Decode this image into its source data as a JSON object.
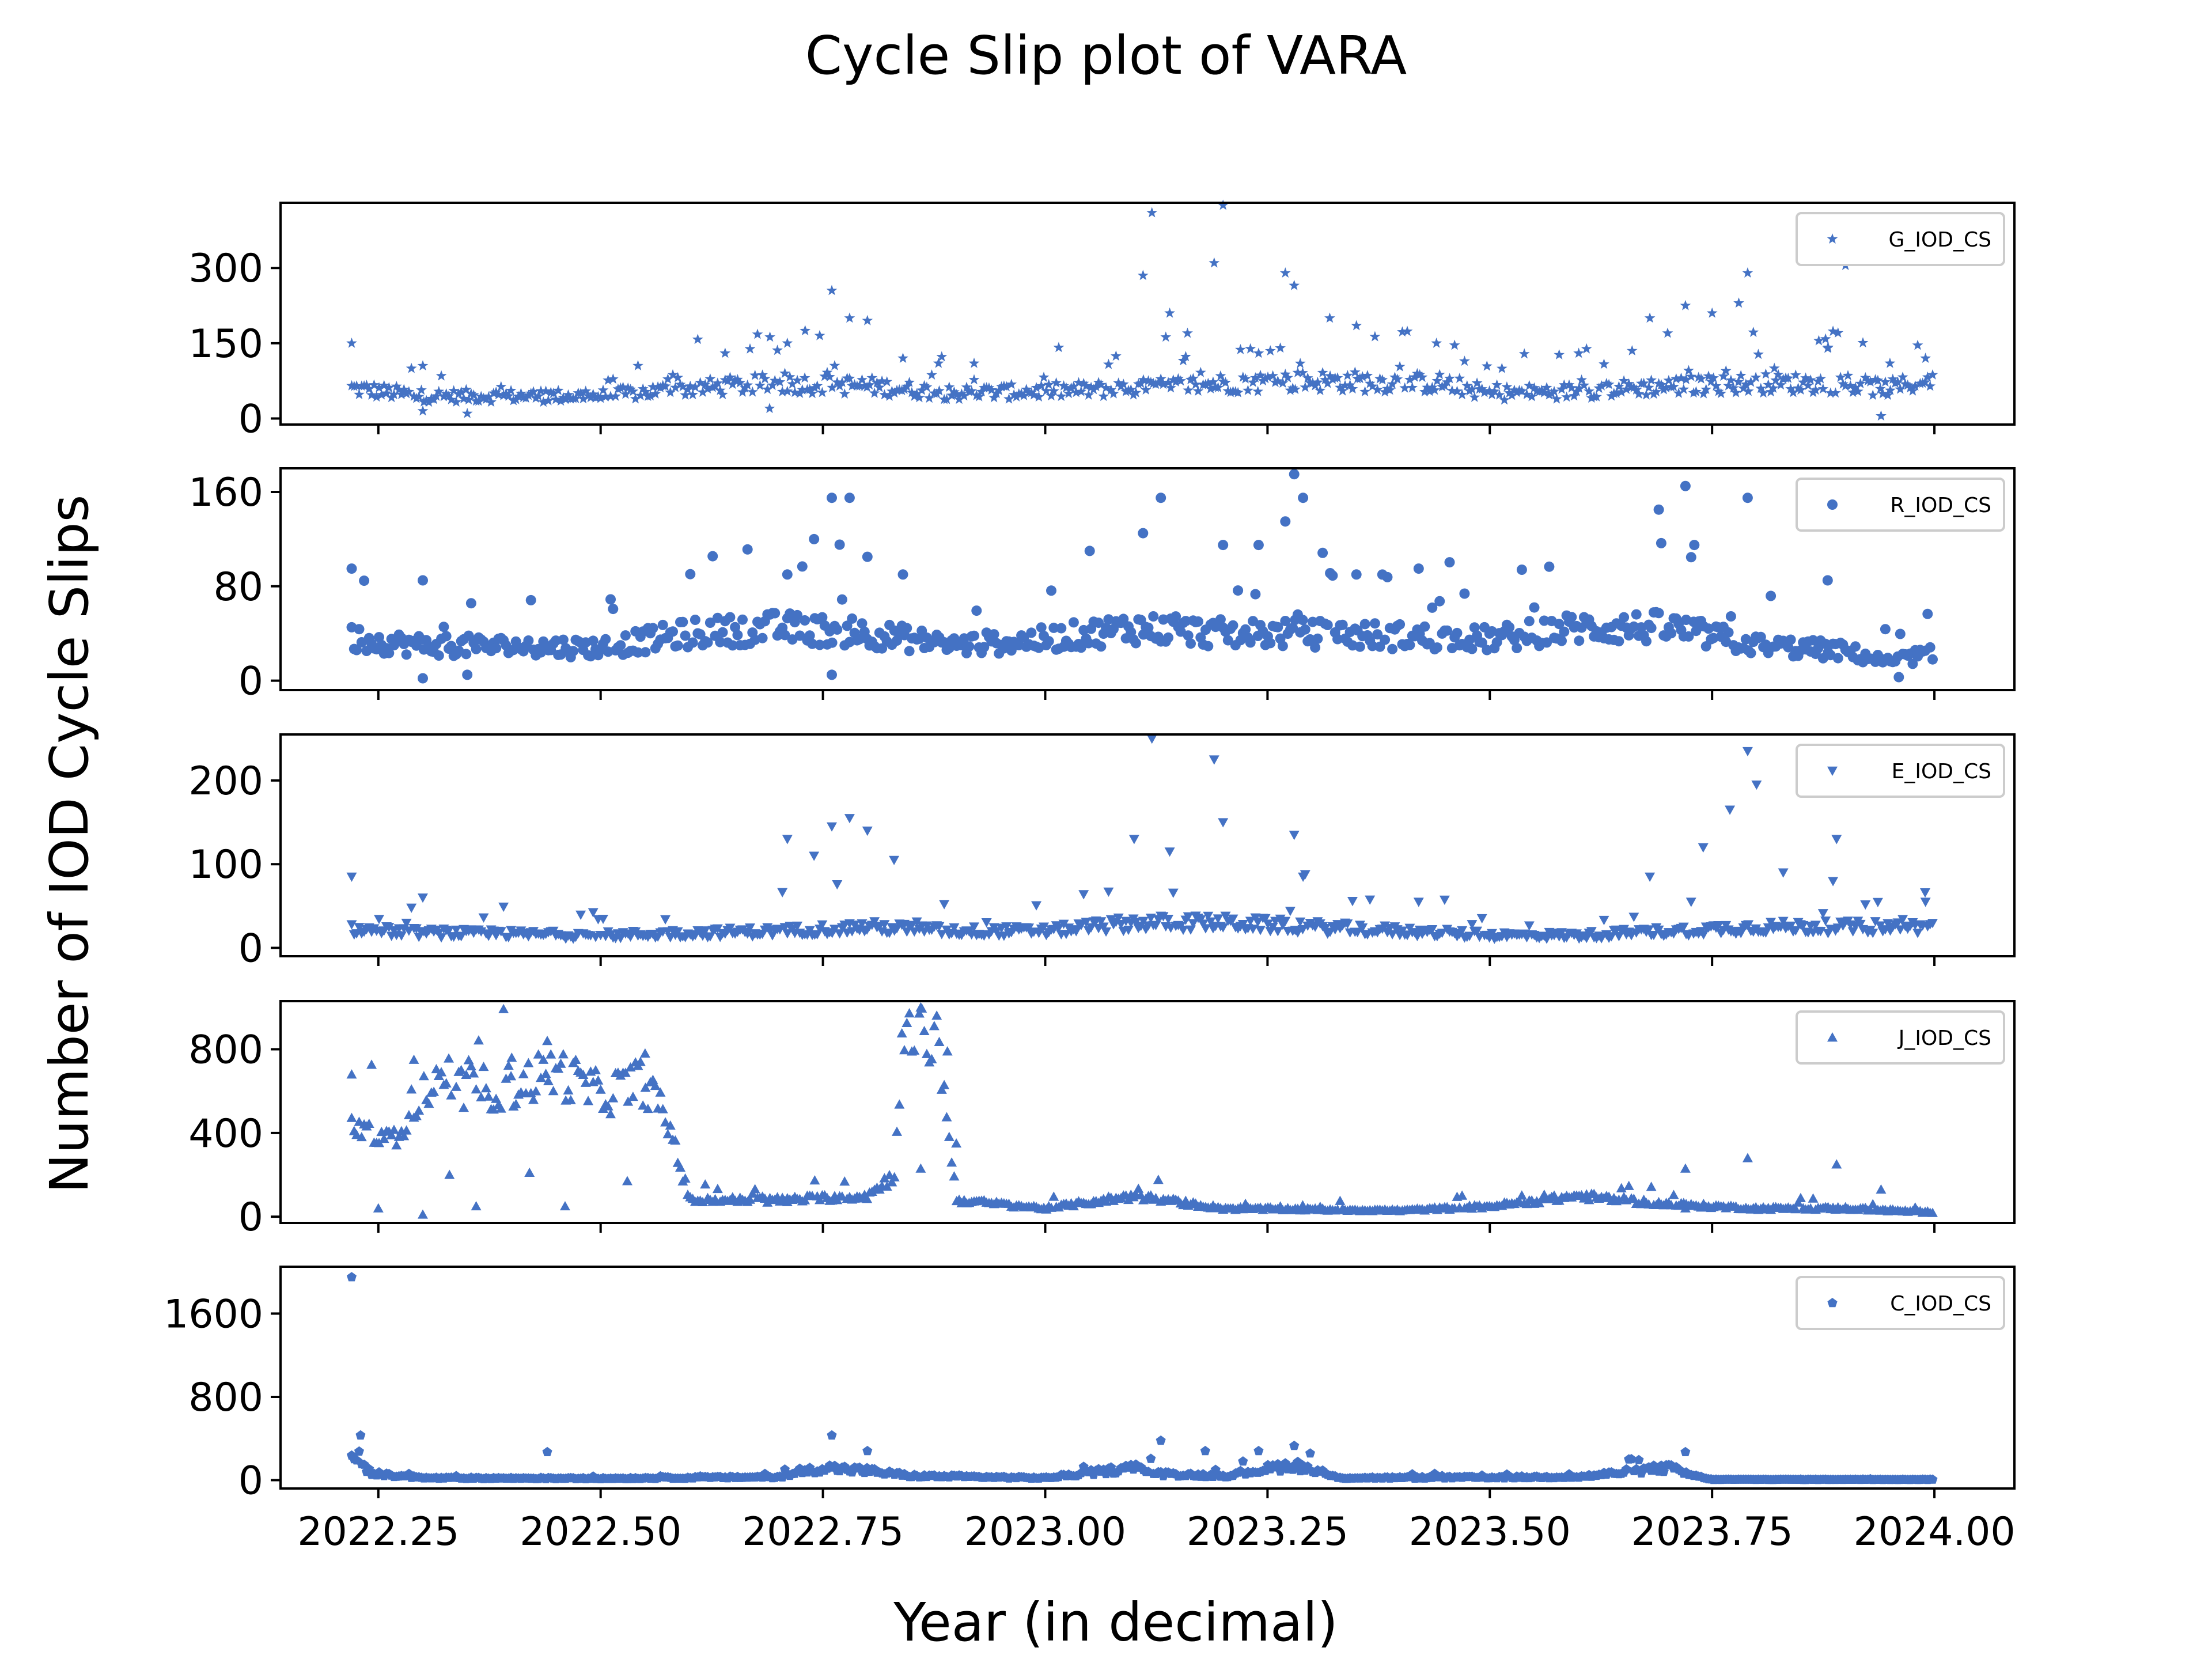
{
  "chart_data": {
    "type": "scatter",
    "title": "Cycle Slip plot of VARA",
    "xlabel": "Year (in decimal)",
    "ylabel": "Number of IOD Cycle Slips",
    "color": "#4472c4",
    "xlim": [
      2022.14,
      2024.09
    ],
    "xticks": [
      2022.25,
      2022.5,
      2022.75,
      2023.0,
      2023.25,
      2023.5,
      2023.75,
      2024.0
    ],
    "xtick_labels": [
      "2022.25",
      "2022.50",
      "2022.75",
      "2023.00",
      "2023.25",
      "2023.50",
      "2023.75",
      "2024.00"
    ],
    "x_start": 2022.22,
    "x_end": 2024.0,
    "legend_placement": "top-right",
    "panels": [
      {
        "name": "G_IOD_CS",
        "marker": "star",
        "ylim": [
          -12,
          430
        ],
        "yticks": [
          0,
          150,
          300
        ],
        "ytick_labels": [
          "0",
          "150",
          "300"
        ],
        "baseline": [
          [
            2022.22,
            60
          ],
          [
            2022.3,
            45
          ],
          [
            2022.5,
            45
          ],
          [
            2022.6,
            60
          ],
          [
            2022.7,
            70
          ],
          [
            2022.8,
            65
          ],
          [
            2022.9,
            50
          ],
          [
            2023.0,
            55
          ],
          [
            2023.1,
            60
          ],
          [
            2023.2,
            70
          ],
          [
            2023.3,
            75
          ],
          [
            2023.45,
            70
          ],
          [
            2023.5,
            50
          ],
          [
            2023.6,
            55
          ],
          [
            2023.7,
            65
          ],
          [
            2023.8,
            70
          ],
          [
            2023.88,
            70
          ],
          [
            2023.95,
            60
          ],
          [
            2024.0,
            80
          ]
        ],
        "peaks": [
          [
            2022.22,
            150
          ],
          [
            2022.3,
            105
          ],
          [
            2022.64,
            130
          ],
          [
            2022.71,
            150
          ],
          [
            2022.73,
            175
          ],
          [
            2022.76,
            255
          ],
          [
            2022.78,
            200
          ],
          [
            2022.8,
            195
          ],
          [
            2022.84,
            120
          ],
          [
            2022.88,
            110
          ],
          [
            2022.92,
            110
          ],
          [
            2023.11,
            285
          ],
          [
            2023.12,
            410
          ],
          [
            2023.14,
            210
          ],
          [
            2023.16,
            170
          ],
          [
            2023.19,
            310
          ],
          [
            2023.2,
            425
          ],
          [
            2023.24,
            130
          ],
          [
            2023.27,
            290
          ],
          [
            2023.28,
            265
          ],
          [
            2023.32,
            200
          ],
          [
            2023.35,
            185
          ],
          [
            2023.44,
            150
          ],
          [
            2023.6,
            130
          ],
          [
            2023.66,
            135
          ],
          [
            2023.68,
            200
          ],
          [
            2023.7,
            170
          ],
          [
            2023.72,
            225
          ],
          [
            2023.75,
            210
          ],
          [
            2023.78,
            230
          ],
          [
            2023.79,
            290
          ],
          [
            2023.82,
            100
          ],
          [
            2023.87,
            155
          ],
          [
            2023.88,
            140
          ],
          [
            2023.9,
            305
          ],
          [
            2023.95,
            110
          ],
          [
            2023.99,
            120
          ]
        ],
        "dips": [
          [
            2022.3,
            15
          ],
          [
            2022.35,
            10
          ],
          [
            2022.69,
            20
          ],
          [
            2023.94,
            5
          ]
        ],
        "noise": 0.28,
        "spike_rate": 0.1,
        "spike_max": 1.6
      },
      {
        "name": "R_IOD_CS",
        "marker": "circle",
        "ylim": [
          -8,
          180
        ],
        "yticks": [
          0,
          80,
          160
        ],
        "ytick_labels": [
          "0",
          "80",
          "160"
        ],
        "baseline": [
          [
            2022.22,
            35
          ],
          [
            2022.3,
            30
          ],
          [
            2022.5,
            28
          ],
          [
            2022.6,
            40
          ],
          [
            2022.7,
            45
          ],
          [
            2022.8,
            40
          ],
          [
            2022.9,
            30
          ],
          [
            2023.0,
            35
          ],
          [
            2023.1,
            45
          ],
          [
            2023.2,
            40
          ],
          [
            2023.3,
            40
          ],
          [
            2023.5,
            35
          ],
          [
            2023.6,
            45
          ],
          [
            2023.7,
            45
          ],
          [
            2023.8,
            30
          ],
          [
            2023.9,
            25
          ],
          [
            2023.95,
            15
          ],
          [
            2024.0,
            25
          ]
        ],
        "peaks": [
          [
            2022.22,
            95
          ],
          [
            2022.3,
            85
          ],
          [
            2022.71,
            90
          ],
          [
            2022.74,
            120
          ],
          [
            2022.76,
            155
          ],
          [
            2022.78,
            155
          ],
          [
            2022.8,
            105
          ],
          [
            2022.84,
            90
          ],
          [
            2023.05,
            110
          ],
          [
            2023.11,
            125
          ],
          [
            2023.13,
            155
          ],
          [
            2023.2,
            115
          ],
          [
            2023.24,
            115
          ],
          [
            2023.27,
            135
          ],
          [
            2023.28,
            175
          ],
          [
            2023.29,
            155
          ],
          [
            2023.35,
            90
          ],
          [
            2023.42,
            95
          ],
          [
            2023.69,
            145
          ],
          [
            2023.72,
            165
          ],
          [
            2023.73,
            115
          ],
          [
            2023.79,
            155
          ],
          [
            2023.88,
            85
          ]
        ],
        "dips": [
          [
            2022.3,
            2
          ],
          [
            2022.35,
            5
          ],
          [
            2022.76,
            5
          ],
          [
            2023.96,
            3
          ]
        ],
        "noise": 0.3,
        "spike_rate": 0.08,
        "spike_max": 1.8
      },
      {
        "name": "E_IOD_CS",
        "marker": "triangle-down",
        "ylim": [
          -10,
          255
        ],
        "yticks": [
          0,
          100,
          200
        ],
        "ytick_labels": [
          "0",
          "100",
          "200"
        ],
        "baseline": [
          [
            2022.22,
            22
          ],
          [
            2022.3,
            18
          ],
          [
            2022.5,
            15
          ],
          [
            2022.7,
            20
          ],
          [
            2022.8,
            25
          ],
          [
            2022.9,
            20
          ],
          [
            2023.0,
            20
          ],
          [
            2023.1,
            30
          ],
          [
            2023.2,
            30
          ],
          [
            2023.3,
            25
          ],
          [
            2023.5,
            15
          ],
          [
            2023.6,
            15
          ],
          [
            2023.7,
            20
          ],
          [
            2023.8,
            25
          ],
          [
            2023.9,
            25
          ],
          [
            2024.0,
            25
          ]
        ],
        "peaks": [
          [
            2022.22,
            85
          ],
          [
            2022.3,
            60
          ],
          [
            2022.71,
            130
          ],
          [
            2022.74,
            110
          ],
          [
            2022.76,
            145
          ],
          [
            2022.78,
            155
          ],
          [
            2022.8,
            140
          ],
          [
            2022.83,
            105
          ],
          [
            2023.1,
            130
          ],
          [
            2023.12,
            250
          ],
          [
            2023.14,
            115
          ],
          [
            2023.19,
            225
          ],
          [
            2023.2,
            150
          ],
          [
            2023.28,
            135
          ],
          [
            2023.29,
            85
          ],
          [
            2023.42,
            55
          ],
          [
            2023.68,
            85
          ],
          [
            2023.74,
            120
          ],
          [
            2023.77,
            165
          ],
          [
            2023.79,
            235
          ],
          [
            2023.8,
            195
          ],
          [
            2023.83,
            90
          ],
          [
            2023.89,
            130
          ],
          [
            2023.99,
            55
          ]
        ],
        "dips": [],
        "noise": 0.3,
        "spike_rate": 0.08,
        "spike_max": 2.5
      },
      {
        "name": "J_IOD_CS",
        "marker": "triangle-up",
        "ylim": [
          -30,
          1030
        ],
        "yticks": [
          0,
          400,
          800
        ],
        "ytick_labels": [
          "0",
          "400",
          "800"
        ],
        "baseline": [
          [
            2022.22,
            450
          ],
          [
            2022.26,
            350
          ],
          [
            2022.3,
            600
          ],
          [
            2022.4,
            620
          ],
          [
            2022.45,
            700
          ],
          [
            2022.5,
            580
          ],
          [
            2022.55,
            650
          ],
          [
            2022.58,
            400
          ],
          [
            2022.6,
            80
          ],
          [
            2022.7,
            80
          ],
          [
            2022.8,
            100
          ],
          [
            2022.83,
            200
          ],
          [
            2022.84,
            850
          ],
          [
            2022.88,
            850
          ],
          [
            2022.9,
            80
          ],
          [
            2023.0,
            40
          ],
          [
            2023.1,
            100
          ],
          [
            2023.2,
            40
          ],
          [
            2023.4,
            30
          ],
          [
            2023.5,
            50
          ],
          [
            2023.6,
            100
          ],
          [
            2023.7,
            60
          ],
          [
            2023.8,
            40
          ],
          [
            2023.9,
            40
          ],
          [
            2024.0,
            20
          ]
        ],
        "peaks": [
          [
            2022.22,
            680
          ],
          [
            2022.29,
            750
          ],
          [
            2022.4,
            760
          ],
          [
            2022.44,
            840
          ],
          [
            2022.55,
            780
          ],
          [
            2022.86,
            1000
          ],
          [
            2022.89,
            790
          ],
          [
            2022.9,
            350
          ],
          [
            2023.72,
            230
          ],
          [
            2023.79,
            280
          ],
          [
            2023.89,
            250
          ],
          [
            2023.94,
            130
          ]
        ],
        "dips": [
          [
            2022.25,
            40
          ],
          [
            2022.3,
            10
          ],
          [
            2022.33,
            200
          ],
          [
            2022.36,
            50
          ],
          [
            2022.42,
            210
          ],
          [
            2022.53,
            170
          ],
          [
            2022.46,
            50
          ],
          [
            2022.71,
            70
          ],
          [
            2022.86,
            230
          ],
          [
            2023.72,
            40
          ]
        ],
        "noise": 0.18,
        "spike_rate": 0.04,
        "spike_max": 1.3
      },
      {
        "name": "C_IOD_CS",
        "marker": "pentagon",
        "ylim": [
          -80,
          2050
        ],
        "yticks": [
          0,
          800,
          1600
        ],
        "ytick_labels": [
          "0",
          "800",
          "1600"
        ],
        "baseline": [
          [
            2022.22,
            350
          ],
          [
            2022.24,
            60
          ],
          [
            2022.3,
            20
          ],
          [
            2022.5,
            15
          ],
          [
            2022.7,
            30
          ],
          [
            2022.75,
            120
          ],
          [
            2022.8,
            90
          ],
          [
            2022.85,
            40
          ],
          [
            2023.0,
            20
          ],
          [
            2023.1,
            120
          ],
          [
            2023.13,
            60
          ],
          [
            2023.2,
            40
          ],
          [
            2023.28,
            150
          ],
          [
            2023.33,
            20
          ],
          [
            2023.6,
            30
          ],
          [
            2023.7,
            120
          ],
          [
            2023.73,
            40
          ],
          [
            2023.75,
            5
          ],
          [
            2024.0,
            5
          ]
        ],
        "peaks": [
          [
            2022.22,
            1950
          ],
          [
            2022.23,
            430
          ],
          [
            2022.44,
            270
          ],
          [
            2022.76,
            430
          ],
          [
            2022.8,
            280
          ],
          [
            2023.13,
            380
          ],
          [
            2023.18,
            280
          ],
          [
            2023.24,
            280
          ],
          [
            2023.28,
            330
          ],
          [
            2023.72,
            270
          ]
        ],
        "dips": [],
        "noise": 0.35,
        "spike_rate": 0.05,
        "spike_max": 1.6
      }
    ]
  }
}
